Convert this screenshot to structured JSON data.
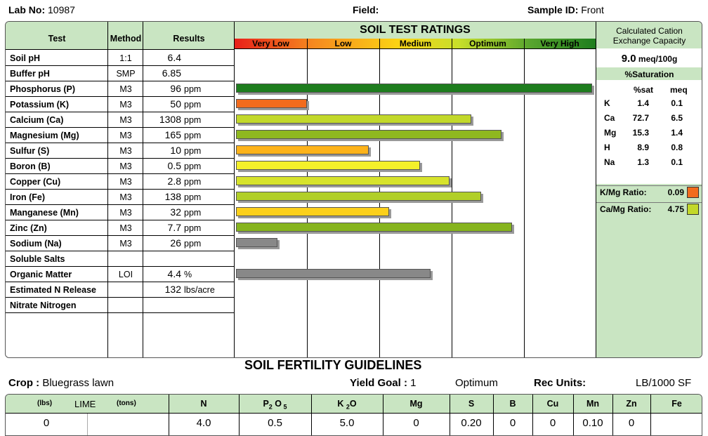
{
  "header": {
    "lab_label": "Lab No:",
    "lab_value": "10987",
    "field_label": "Field:",
    "sample_label": "Sample ID:",
    "sample_value": "Front"
  },
  "table_headers": {
    "test": "Test",
    "method": "Method",
    "results": "Results",
    "ratings_title": "SOIL TEST RATINGS",
    "rating_levels": [
      "Very Low",
      "Low",
      "Medium",
      "Optimum",
      "Very High"
    ]
  },
  "rows": [
    {
      "test": "Soil pH",
      "method": "1:1",
      "value": "6.4",
      "unit": "",
      "rating": null,
      "color": null
    },
    {
      "test": "Buffer pH",
      "method": "SMP",
      "value": "6.85",
      "unit": "",
      "rating": null,
      "color": null
    },
    {
      "test": "Phosphorus (P)",
      "method": "M3",
      "value": "96",
      "unit": "ppm",
      "rating": 0.995,
      "color": "#1e7d1e"
    },
    {
      "test": "Potassium (K)",
      "method": "M3",
      "value": "50",
      "unit": "ppm",
      "rating": 0.198,
      "color": "#f26b1d"
    },
    {
      "test": "Calcium (Ca)",
      "method": "M3",
      "value": "1308",
      "unit": "ppm",
      "rating": 0.657,
      "color": "#c2d82a"
    },
    {
      "test": "Magnesium (Mg)",
      "method": "M3",
      "value": "165",
      "unit": "ppm",
      "rating": 0.742,
      "color": "#8fb81f"
    },
    {
      "test": "Sulfur (S)",
      "method": "M3",
      "value": "10",
      "unit": "ppm",
      "rating": 0.371,
      "color": "#fdb31a"
    },
    {
      "test": "Boron (B)",
      "method": "M3",
      "value": "0.5",
      "unit": "ppm",
      "rating": 0.514,
      "color": "#f4f02a"
    },
    {
      "test": "Copper (Cu)",
      "method": "M3",
      "value": "2.8",
      "unit": "ppm",
      "rating": 0.597,
      "color": "#d7e32b"
    },
    {
      "test": "Iron (Fe)",
      "method": "M3",
      "value": "138",
      "unit": "ppm",
      "rating": 0.685,
      "color": "#b1cf28"
    },
    {
      "test": "Manganese (Mn)",
      "method": "M3",
      "value": "32",
      "unit": "ppm",
      "rating": 0.428,
      "color": "#fcd01b"
    },
    {
      "test": "Zinc (Zn)",
      "method": "M3",
      "value": "7.7",
      "unit": "ppm",
      "rating": 0.77,
      "color": "#86b41e"
    },
    {
      "test": "Sodium (Na)",
      "method": "M3",
      "value": "26",
      "unit": "ppm",
      "rating": 0.115,
      "color": "#888888"
    },
    {
      "test": "Soluble Salts",
      "method": "",
      "value": "",
      "unit": "",
      "rating": null,
      "color": null
    },
    {
      "test": "Organic Matter",
      "method": "LOI",
      "value": "4.4",
      "unit": "%",
      "rating": 0.544,
      "color": "#888888"
    },
    {
      "test": "Estimated N Release",
      "method": "",
      "value": "132",
      "unit": "lbs/acre",
      "rating": null,
      "color": null
    },
    {
      "test": "Nitrate Nitrogen",
      "method": "",
      "value": "",
      "unit": "",
      "rating": null,
      "color": null
    }
  ],
  "cec": {
    "title_line1": "Calculated Cation",
    "title_line2": "Exchange Capacity",
    "value": "9.0",
    "unit": "meq/100g"
  },
  "saturation": {
    "title": "%Saturation",
    "col_sat": "%sat",
    "col_meq": "meq",
    "rows": [
      {
        "el": "K",
        "sat": "1.4",
        "meq": "0.1"
      },
      {
        "el": "Ca",
        "sat": "72.7",
        "meq": "6.5"
      },
      {
        "el": "Mg",
        "sat": "15.3",
        "meq": "1.4"
      },
      {
        "el": "H",
        "sat": "8.9",
        "meq": "0.8"
      },
      {
        "el": "Na",
        "sat": "1.3",
        "meq": "0.1"
      }
    ]
  },
  "ratios": [
    {
      "label": "K/Mg Ratio:",
      "value": "0.09",
      "color": "#f26b1d"
    },
    {
      "label": "Ca/Mg Ratio:",
      "value": "4.75",
      "color": "#c2d82a"
    }
  ],
  "guidelines": {
    "title": "SOIL FERTILITY GUIDELINES",
    "crop_label": "Crop :",
    "crop_value": "Bluegrass lawn",
    "yield_label": "Yield Goal :",
    "yield_value": "1",
    "optimum": "Optimum",
    "rec_label": "Rec Units:",
    "rec_value": "LB/1000 SF"
  },
  "recs": {
    "lime_lbs": "(lbs)",
    "lime_label": "LIME",
    "lime_tons": "(tons)",
    "headers": [
      "N",
      "P2O5",
      "K2O",
      "Mg",
      "S",
      "B",
      "Cu",
      "Mn",
      "Zn",
      "Fe"
    ],
    "lime_value": "0",
    "values": [
      "4.0",
      "0.5",
      "5.0",
      "0",
      "0.20",
      "0",
      "0",
      "0.10",
      "0",
      ""
    ]
  }
}
